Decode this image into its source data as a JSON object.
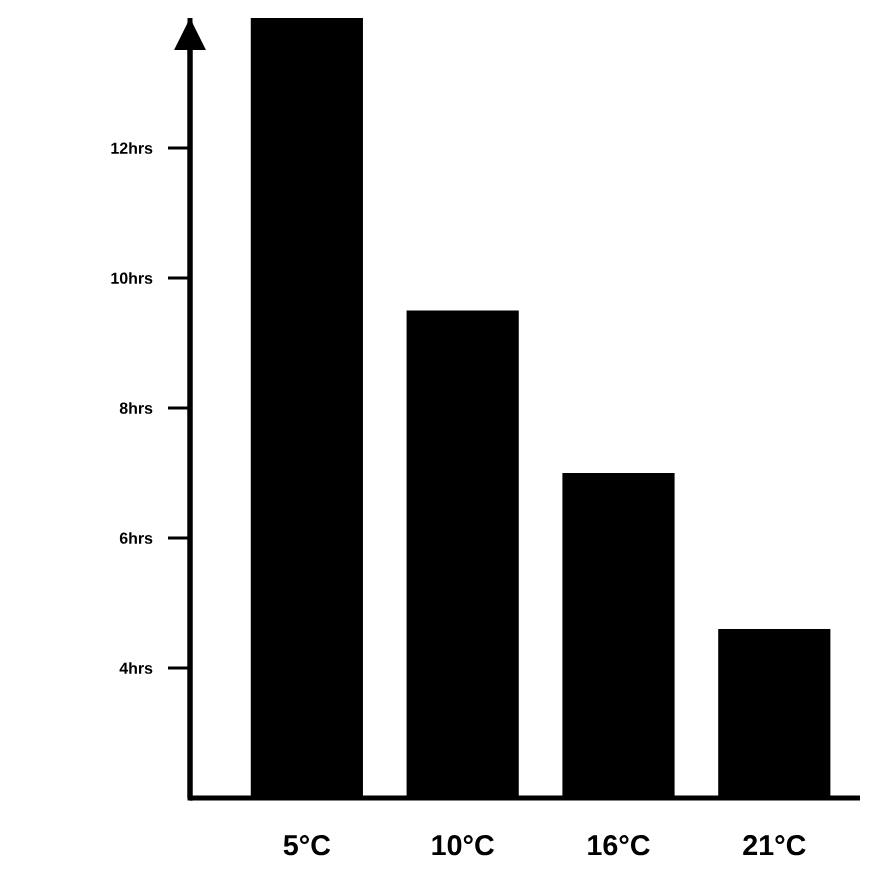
{
  "chart_data": {
    "type": "bar",
    "categories": [
      "5°C",
      "10°C",
      "16°C",
      "21°C"
    ],
    "values": [
      14,
      9.5,
      7,
      4.6
    ],
    "color": "#000000",
    "ylim": [
      2,
      14
    ],
    "yticks": [
      {
        "value": 4,
        "label": "4hrs"
      },
      {
        "value": 6,
        "label": "6hrs"
      },
      {
        "value": 8,
        "label": "8hrs"
      },
      {
        "value": 10,
        "label": "10hrs"
      },
      {
        "value": 12,
        "label": "12hrs"
      }
    ]
  }
}
